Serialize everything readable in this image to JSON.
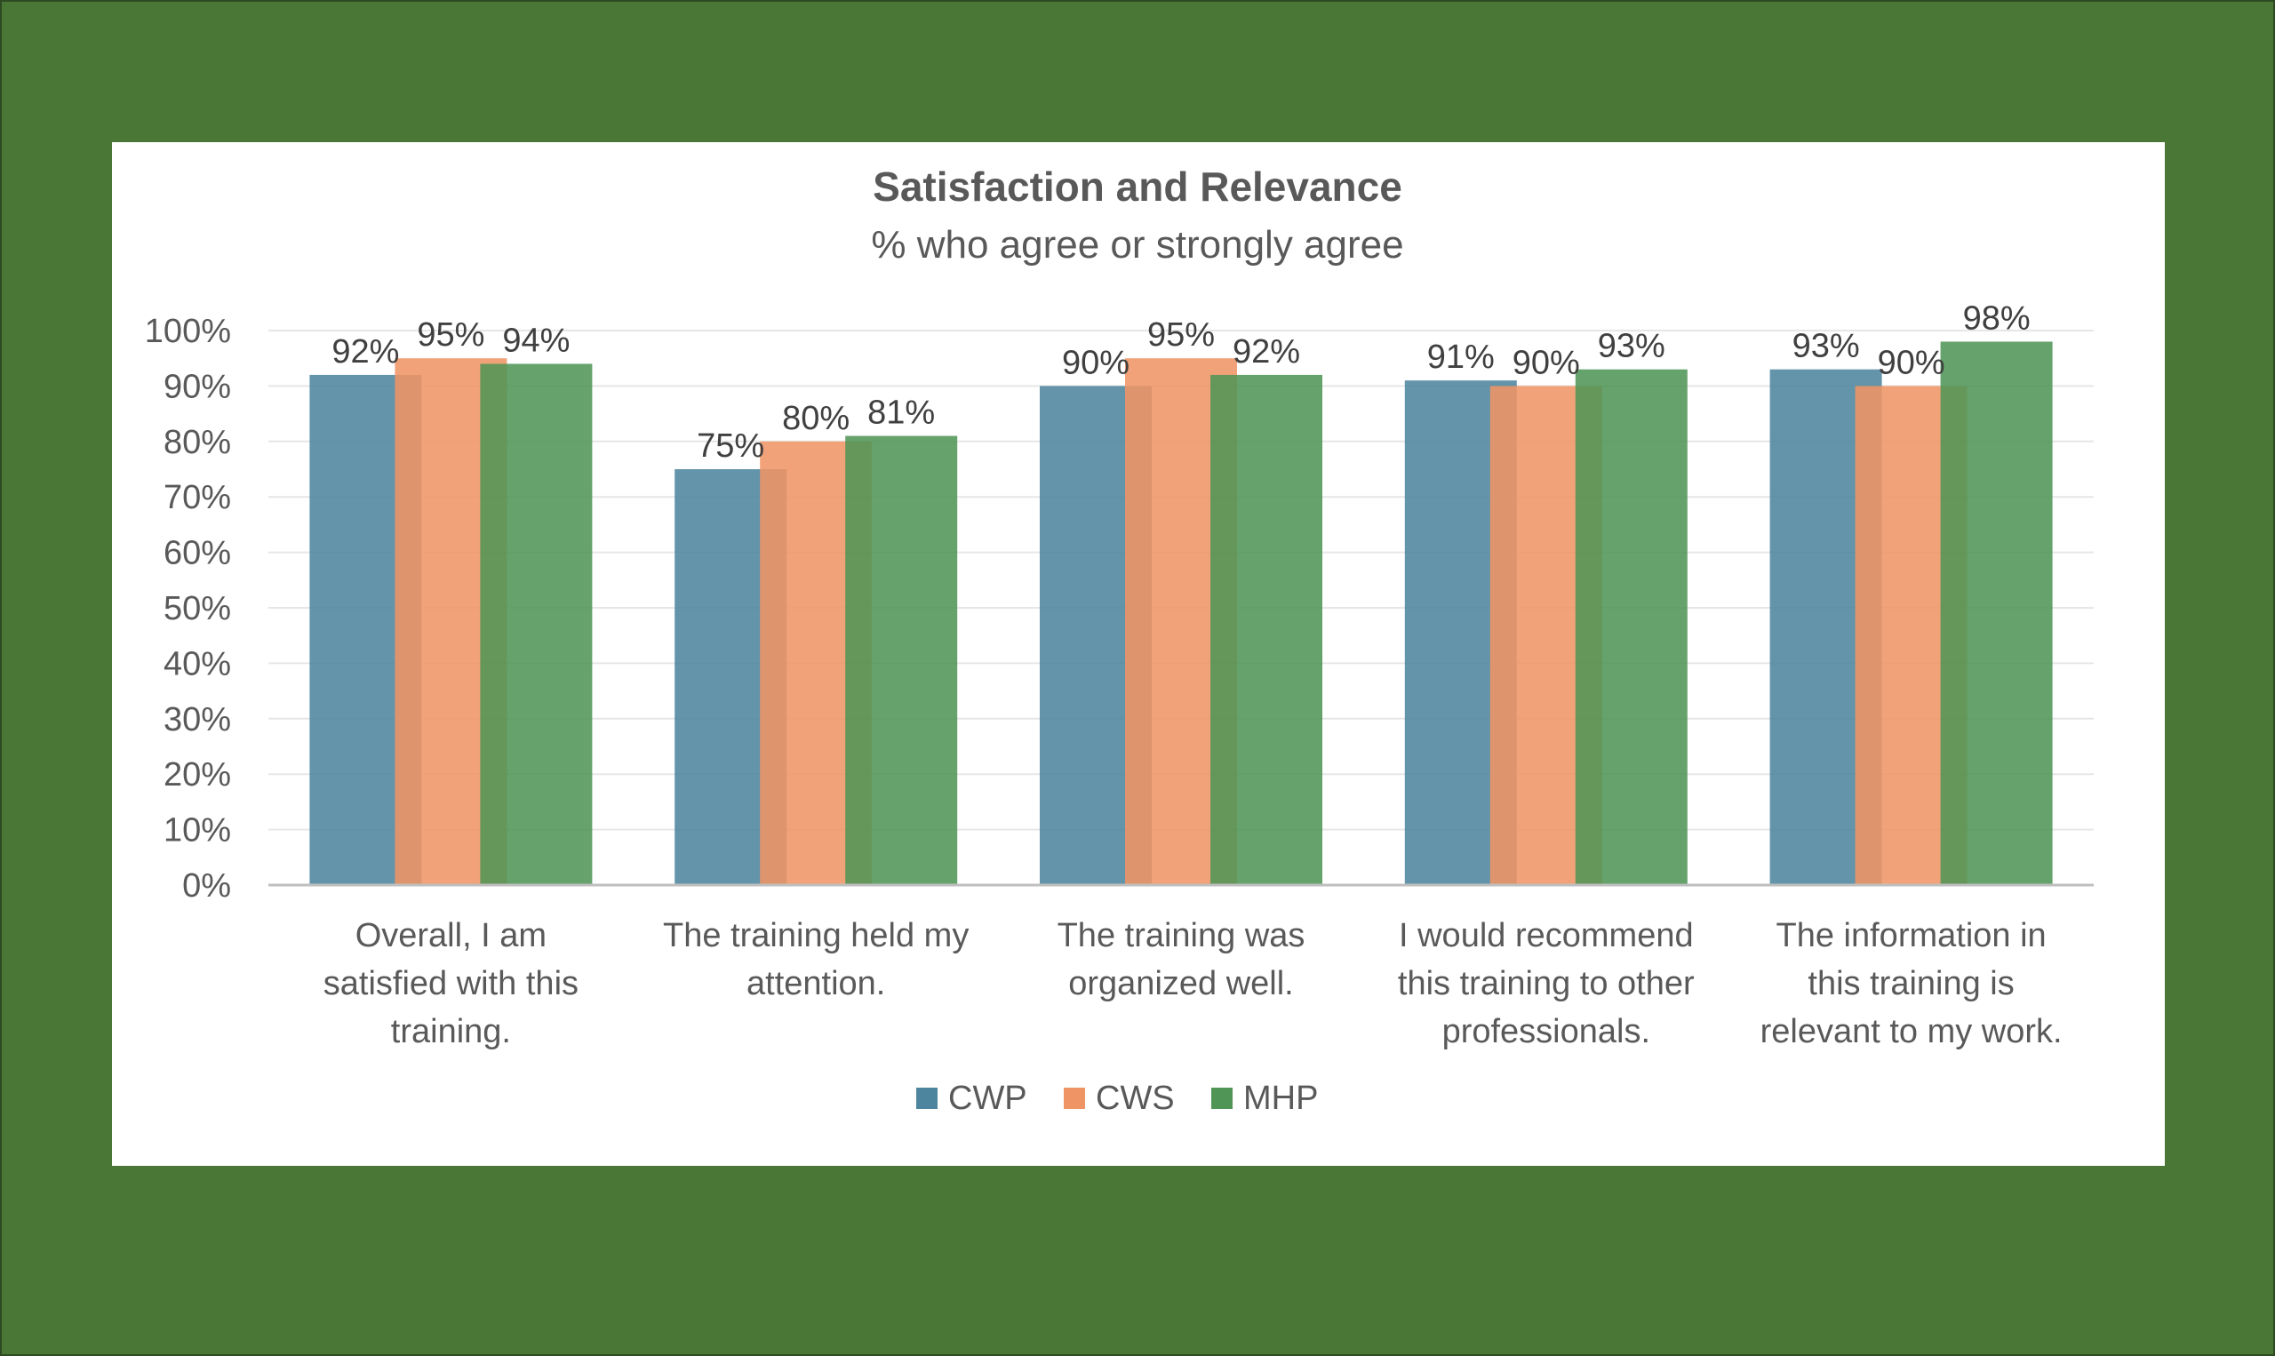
{
  "colors": {
    "background": "#4a7636",
    "CWP": "#4e859e",
    "CWS": "#ef9565",
    "MHP": "#519556",
    "grid": "#e6e6e6",
    "axis": "#bfbfbf"
  },
  "chart_data": {
    "type": "bar",
    "title": "Satisfaction and Relevance",
    "subtitle": "% who agree or strongly agree",
    "categories": [
      [
        "Overall, I am",
        "satisfied with this",
        "training."
      ],
      [
        "The training held my",
        "attention."
      ],
      [
        "The training was",
        "organized well."
      ],
      [
        "I would recommend",
        "this training to other",
        "professionals."
      ],
      [
        "The information in",
        "this training is",
        "relevant to my work."
      ]
    ],
    "series": [
      {
        "name": "CWP",
        "values": [
          92,
          75,
          90,
          91,
          93
        ],
        "labels": [
          "92%",
          "75%",
          "90%",
          "91%",
          "93%"
        ]
      },
      {
        "name": "CWS",
        "values": [
          95,
          80,
          95,
          90,
          90
        ],
        "labels": [
          "95%",
          "80%",
          "95%",
          "90%",
          "90%"
        ]
      },
      {
        "name": "MHP",
        "values": [
          94,
          81,
          92,
          93,
          98
        ],
        "labels": [
          "94%",
          "81%",
          "92%",
          "93%",
          "98%"
        ]
      }
    ],
    "ylim": [
      0,
      100
    ],
    "yticks": [
      "0%",
      "10%",
      "20%",
      "30%",
      "40%",
      "50%",
      "60%",
      "70%",
      "80%",
      "90%",
      "100%"
    ],
    "grid": true,
    "legend": "bottom-center",
    "xlabel": "",
    "ylabel": ""
  }
}
